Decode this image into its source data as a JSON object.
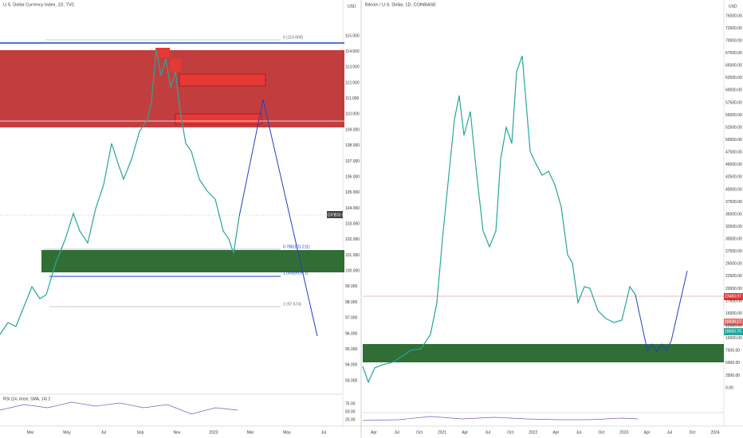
{
  "left_chart": {
    "title": "U.S. Dollar Currency Index, 1D, TVC",
    "currency": "USD",
    "price_axis": [
      "115.000",
      "114.000",
      "113.000",
      "112.000",
      "111.000",
      "110.000",
      "109.000",
      "108.000",
      "107.000",
      "106.000",
      "105.000",
      "104.000",
      "103.000",
      "102.000",
      "101.000",
      "100.000",
      "99.000",
      "98.000",
      "97.000",
      "96.000",
      "95.000",
      "94.000",
      "93.000"
    ],
    "symbol_tag": "DXY",
    "price_tag": "103.595",
    "fib_labels": [
      "0 (114.669)",
      "0.786(101.211)",
      "1.000(99.571)",
      "1 (97.674)"
    ],
    "indicator": "RSI (14, close, SMA, 14) 2",
    "indicator_axis": [
      "75.00",
      "50.00",
      "25.00"
    ],
    "time_axis": [
      "Mar",
      "May",
      "Jul",
      "Sep",
      "Nov",
      "2023",
      "Mar",
      "May",
      "Jul"
    ]
  },
  "right_chart": {
    "title": "Bitcoin / U.S. Dollar, 1D, COINBASE",
    "currency": "USD",
    "price_axis": [
      "75000.00",
      "72500.00",
      "70000.00",
      "67500.00",
      "65000.00",
      "62500.00",
      "60000.00",
      "57500.00",
      "55000.00",
      "52500.00",
      "50000.00",
      "47500.00",
      "45000.00",
      "42500.00",
      "40000.00",
      "37500.00",
      "35000.00",
      "32500.00",
      "30000.00",
      "27500.00",
      "25000.00",
      "22500.00",
      "20000.00",
      "17500.00",
      "15000.00",
      "12500.00",
      "10000.00",
      "7500.00",
      "5000.00",
      "2500.00",
      "0.00"
    ],
    "price_tags": [
      "23483.97",
      "16939.17",
      "16683.75"
    ],
    "time_axis": [
      "Apr",
      "Jul",
      "Oct",
      "2021",
      "Apr",
      "Jul",
      "Oct",
      "2022",
      "Apr",
      "Jul",
      "Oct",
      "2023",
      "Apr",
      "Jul",
      "Oct",
      "2024"
    ]
  }
}
